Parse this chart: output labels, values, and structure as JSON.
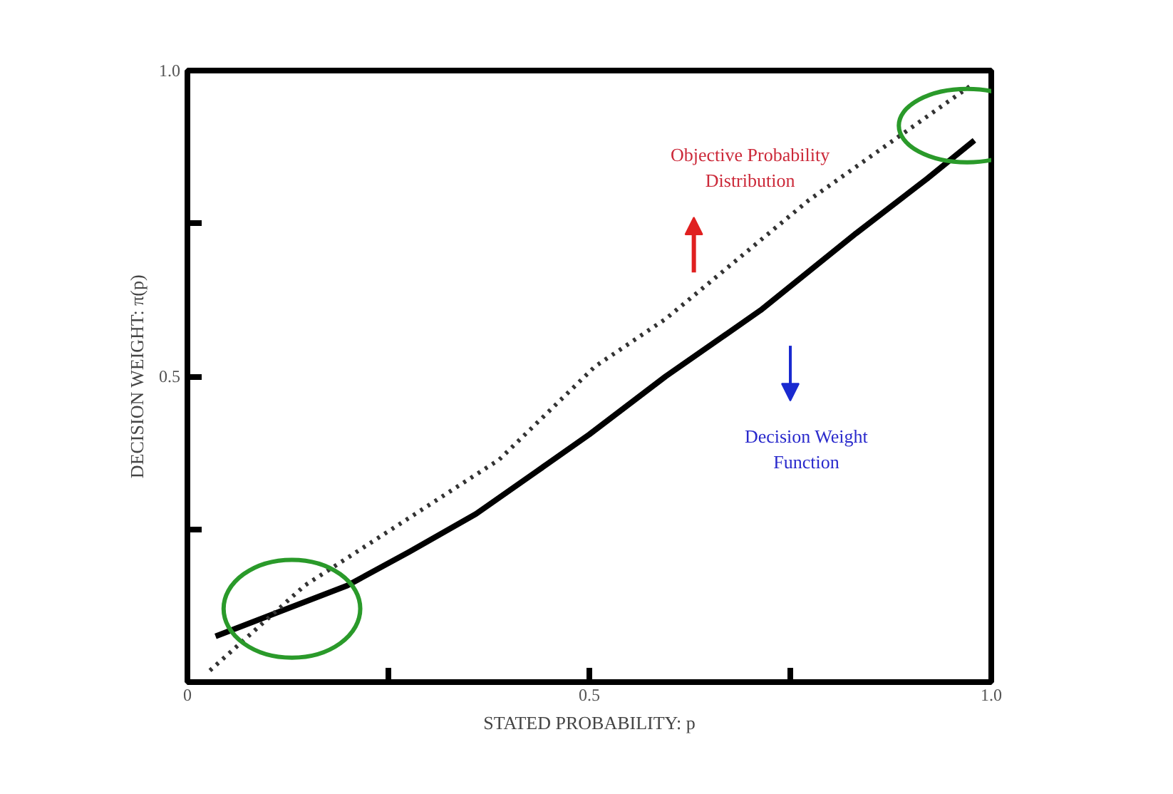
{
  "chart_data": {
    "type": "line",
    "xlabel": "STATED PROBABILITY: p",
    "ylabel": "DECISION WEIGHT: π(p)",
    "xlim": [
      0,
      1
    ],
    "ylim": [
      0,
      1
    ],
    "xticks": [
      0,
      {
        "value": 0.25,
        "label": null
      },
      0.5,
      {
        "value": 0.75,
        "label": null
      },
      {
        "value": 1,
        "label": "1.0"
      }
    ],
    "yticks": [
      {
        "value": 0.25,
        "label": null
      },
      0.5,
      {
        "value": 0.75,
        "label": null
      },
      {
        "value": 1,
        "label": "1.0"
      }
    ],
    "series": [
      {
        "color": "#000000",
        "line_style": "solid",
        "x": [
          0.035,
          0.146,
          0.199,
          0.276,
          0.359,
          0.435,
          0.5,
          0.595,
          0.713,
          0.832,
          0.92,
          0.979
        ],
        "values": [
          0.075,
          0.131,
          0.158,
          0.213,
          0.275,
          0.345,
          0.405,
          0.5,
          0.608,
          0.734,
          0.823,
          0.886
        ]
      },
      {
        "color": "#333333",
        "line_style": "dotted",
        "x": [
          0.028,
          0.146,
          0.388,
          0.507,
          0.595,
          0.773,
          0.973
        ],
        "values": [
          0.019,
          0.158,
          0.364,
          0.516,
          0.594,
          0.788,
          0.974
        ]
      }
    ],
    "annotations": [
      "Objective Probability\nDistribution",
      "Decision Weight\nFunction"
    ],
    "grid": false,
    "marker": "none"
  }
}
